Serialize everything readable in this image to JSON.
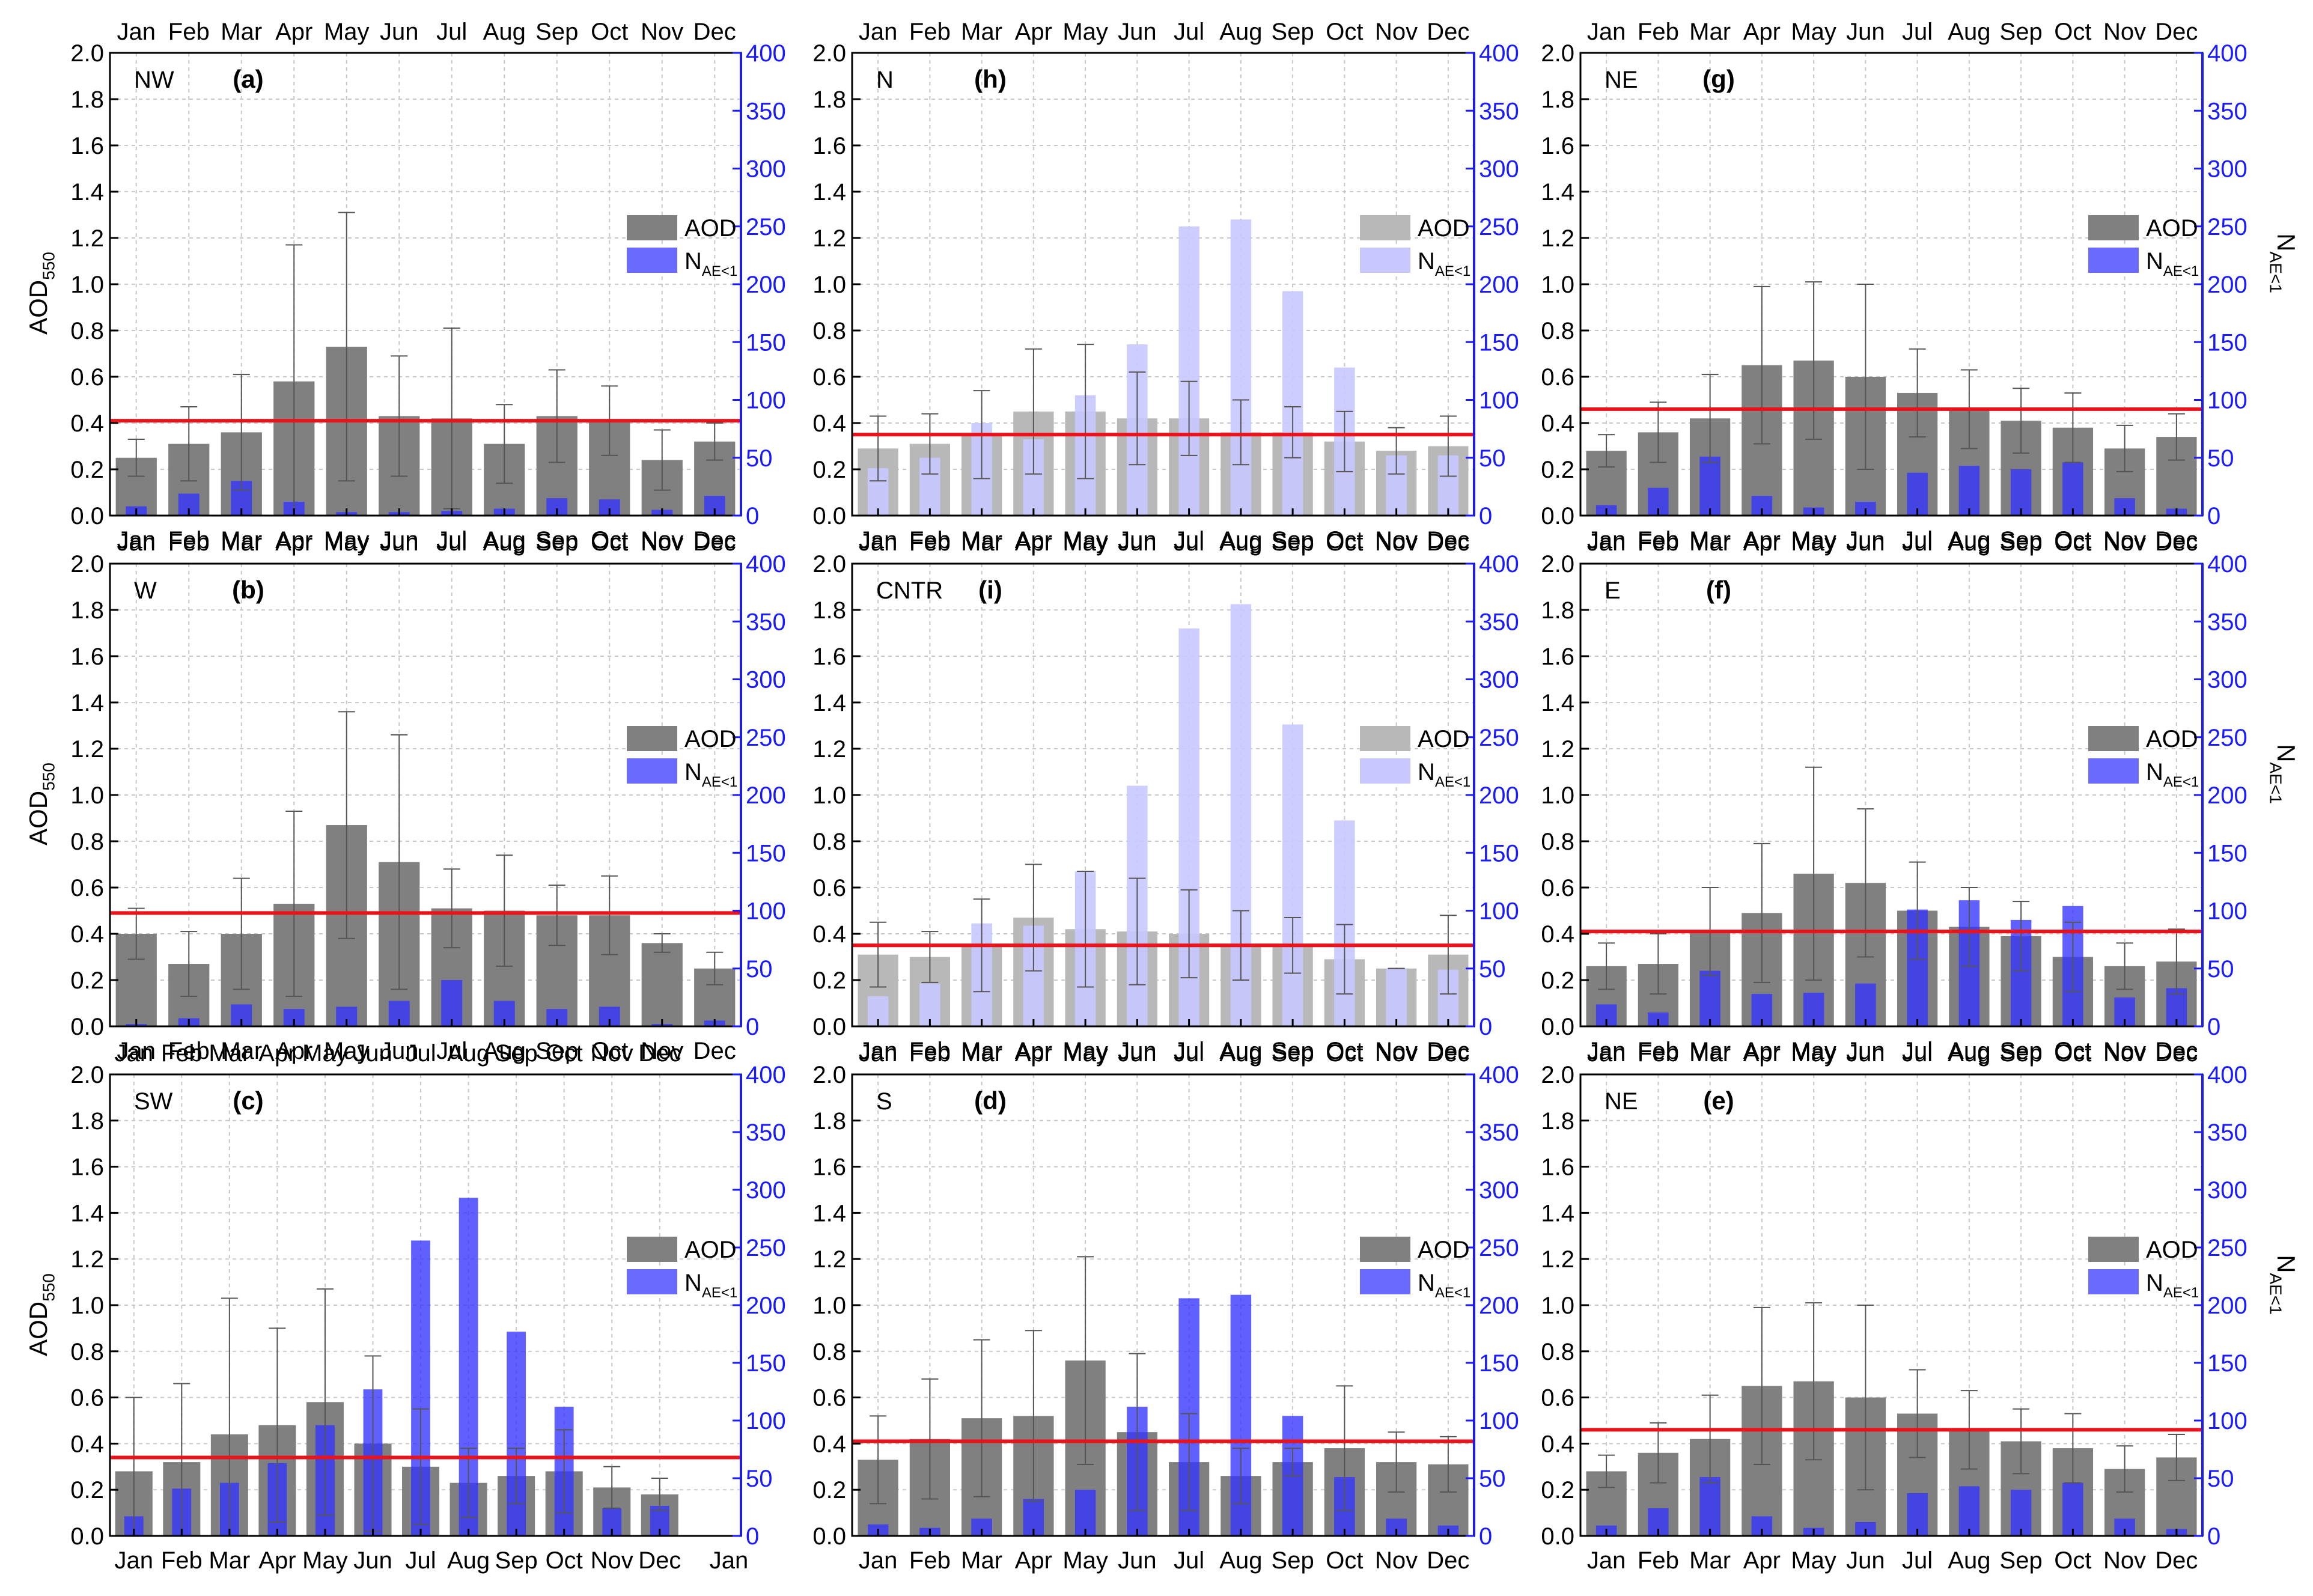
{
  "figure": {
    "months": [
      "Jan",
      "Feb",
      "Mar",
      "Apr",
      "May",
      "Jun",
      "Jul",
      "Aug",
      "Sep",
      "Oct",
      "Nov",
      "Dec"
    ],
    "left_axis_label_main": "AOD",
    "left_axis_label_sub": "550",
    "right_axis_label_main": "N",
    "right_axis_label_sub": "AE<1",
    "legend_aod": "AOD",
    "legend_n_main": "N",
    "legend_n_sub": "AE<1",
    "colors": {
      "aod_bar": "#808080",
      "aod_bar_faded": "#b8b8b8",
      "n_bar": "#3333ff",
      "n_bar_light": "#6a6aff",
      "n_bar_faded": "#c8c8ff",
      "mean_line": "#e8141c",
      "right_axis": "#1a1aff"
    }
  },
  "chart_data": [
    {
      "type": "bar",
      "region": "NW",
      "panel_label": "(a)",
      "categories": [
        "Jan",
        "Feb",
        "Mar",
        "Apr",
        "May",
        "Jun",
        "Jul",
        "Aug",
        "Sep",
        "Oct",
        "Nov",
        "Dec"
      ],
      "extra_tick": "",
      "series": [
        {
          "name": "AOD",
          "axis": "left",
          "values": [
            0.25,
            0.31,
            0.36,
            0.58,
            0.73,
            0.43,
            0.42,
            0.31,
            0.43,
            0.41,
            0.24,
            0.32
          ],
          "error_upper": [
            0.33,
            0.47,
            0.61,
            1.17,
            1.31,
            0.69,
            0.81,
            0.48,
            0.63,
            0.56,
            0.37,
            0.4
          ]
        },
        {
          "name": "N_AE<1",
          "axis": "right",
          "values": [
            8,
            19,
            30,
            12,
            3,
            3,
            4,
            6,
            15,
            14,
            5,
            17
          ]
        }
      ],
      "mean_line": 0.41,
      "ylim_left": [
        0,
        2.0
      ],
      "ylim_right": [
        0,
        400
      ]
    },
    {
      "type": "bar",
      "region": "N",
      "panel_label": "(h)",
      "faded": true,
      "categories": [
        "Jan",
        "Feb",
        "Mar",
        "Apr",
        "May",
        "Jun",
        "Jul",
        "Aug",
        "Sep",
        "Oct",
        "Nov",
        "Dec"
      ],
      "extra_tick": "",
      "series": [
        {
          "name": "AOD",
          "axis": "left",
          "values": [
            0.29,
            0.31,
            0.35,
            0.45,
            0.45,
            0.42,
            0.42,
            0.36,
            0.36,
            0.32,
            0.28,
            0.3
          ],
          "error_upper": [
            0.43,
            0.44,
            0.54,
            0.72,
            0.74,
            0.62,
            0.58,
            0.5,
            0.47,
            0.45,
            0.38,
            0.43
          ]
        },
        {
          "name": "N_AE<1",
          "axis": "right",
          "values": [
            41,
            50,
            80,
            66,
            104,
            148,
            250,
            256,
            194,
            128,
            52,
            52
          ]
        }
      ],
      "mean_line": 0.35,
      "ylim_left": [
        0,
        2.0
      ],
      "ylim_right": [
        0,
        400
      ]
    },
    {
      "type": "bar",
      "region": "NE",
      "panel_label": "(g)",
      "categories": [
        "Jan",
        "Feb",
        "Mar",
        "Apr",
        "May",
        "Jun",
        "Jul",
        "Aug",
        "Sep",
        "Oct",
        "Nov",
        "Dec"
      ],
      "extra_tick": "",
      "series": [
        {
          "name": "AOD",
          "axis": "left",
          "values": [
            0.28,
            0.36,
            0.42,
            0.65,
            0.67,
            0.6,
            0.53,
            0.46,
            0.41,
            0.38,
            0.29,
            0.34
          ],
          "error_upper": [
            0.35,
            0.49,
            0.61,
            0.99,
            1.01,
            1.0,
            0.72,
            0.63,
            0.55,
            0.53,
            0.39,
            0.44
          ]
        },
        {
          "name": "N_AE<1",
          "axis": "right",
          "values": [
            9,
            24,
            51,
            17,
            7,
            12,
            37,
            43,
            40,
            46,
            15,
            6
          ]
        }
      ],
      "mean_line": 0.46,
      "ylim_left": [
        0,
        2.0
      ],
      "ylim_right": [
        0,
        400
      ]
    },
    {
      "type": "bar",
      "region": "W",
      "panel_label": "(b)",
      "categories": [
        "Jan",
        "Feb",
        "Mar",
        "Apr",
        "May",
        "Jun",
        "Jul",
        "Aug",
        "Sep",
        "Oct",
        "Nov",
        "Dec"
      ],
      "extra_tick": "",
      "series": [
        {
          "name": "AOD",
          "axis": "left",
          "values": [
            0.4,
            0.27,
            0.4,
            0.53,
            0.87,
            0.71,
            0.51,
            0.5,
            0.48,
            0.48,
            0.36,
            0.25
          ],
          "error_upper": [
            0.51,
            0.41,
            0.64,
            0.93,
            1.36,
            1.26,
            0.68,
            0.74,
            0.61,
            0.65,
            0.4,
            0.32
          ]
        },
        {
          "name": "N_AE<1",
          "axis": "right",
          "values": [
            2,
            7,
            19,
            15,
            17,
            22,
            40,
            22,
            15,
            17,
            2,
            5
          ]
        }
      ],
      "mean_line": 0.49,
      "ylim_left": [
        0,
        2.0
      ],
      "ylim_right": [
        0,
        400
      ]
    },
    {
      "type": "bar",
      "region": "CNTR",
      "panel_label": "(i)",
      "faded": true,
      "categories": [
        "Jan",
        "Feb",
        "Mar",
        "Apr",
        "May",
        "Jun",
        "Jul",
        "Aug",
        "Sep",
        "Oct",
        "Nov",
        "Dec"
      ],
      "extra_tick": "",
      "series": [
        {
          "name": "AOD",
          "axis": "left",
          "values": [
            0.31,
            0.3,
            0.35,
            0.47,
            0.42,
            0.41,
            0.4,
            0.35,
            0.35,
            0.29,
            0.25,
            0.31
          ],
          "error_upper": [
            0.45,
            0.41,
            0.55,
            0.7,
            0.67,
            0.64,
            0.59,
            0.5,
            0.47,
            0.44,
            0.25,
            0.48
          ]
        },
        {
          "name": "N_AE<1",
          "axis": "right",
          "values": [
            26,
            37,
            89,
            87,
            134,
            208,
            344,
            365,
            261,
            178,
            50,
            49
          ]
        }
      ],
      "mean_line": 0.35,
      "ylim_left": [
        0,
        2.0
      ],
      "ylim_right": [
        0,
        400
      ]
    },
    {
      "type": "bar",
      "region": "E",
      "panel_label": "(f)",
      "categories": [
        "Jan",
        "Feb",
        "Mar",
        "Apr",
        "May",
        "Jun",
        "Jul",
        "Aug",
        "Sep",
        "Oct",
        "Nov",
        "Dec"
      ],
      "extra_tick": "",
      "series": [
        {
          "name": "AOD",
          "axis": "left",
          "values": [
            0.26,
            0.27,
            0.41,
            0.49,
            0.66,
            0.62,
            0.5,
            0.43,
            0.39,
            0.3,
            0.26,
            0.28
          ],
          "error_upper": [
            0.36,
            0.4,
            0.6,
            0.79,
            1.12,
            0.94,
            0.71,
            0.6,
            0.54,
            0.45,
            0.36,
            0.42
          ]
        },
        {
          "name": "N_AE<1",
          "axis": "right",
          "values": [
            19,
            12,
            48,
            28,
            29,
            37,
            101,
            109,
            92,
            104,
            25,
            33
          ]
        }
      ],
      "mean_line": 0.41,
      "ylim_left": [
        0,
        2.0
      ],
      "ylim_right": [
        0,
        400
      ]
    },
    {
      "type": "bar",
      "region": "SW",
      "panel_label": "(c)",
      "categories": [
        "Jan",
        "Feb",
        "Mar",
        "Apr",
        "May",
        "Jun",
        "Jul",
        "Aug",
        "Sep",
        "Oct",
        "Nov",
        "Dec"
      ],
      "extra_tick": "Jan",
      "series": [
        {
          "name": "AOD",
          "axis": "left",
          "values": [
            0.28,
            0.32,
            0.44,
            0.48,
            0.58,
            0.4,
            0.3,
            0.23,
            0.26,
            0.28,
            0.21,
            0.18
          ],
          "error_upper": [
            0.6,
            0.66,
            1.03,
            0.9,
            1.07,
            0.78,
            0.55,
            0.38,
            0.38,
            0.46,
            0.3,
            0.25
          ]
        },
        {
          "name": "N_AE<1",
          "axis": "right",
          "values": [
            17,
            41,
            46,
            63,
            96,
            127,
            256,
            293,
            177,
            112,
            24,
            26
          ]
        }
      ],
      "mean_line": 0.34,
      "ylim_left": [
        0,
        2.0
      ],
      "ylim_right": [
        0,
        400
      ]
    },
    {
      "type": "bar",
      "region": "S",
      "panel_label": "(d)",
      "categories": [
        "Jan",
        "Feb",
        "Mar",
        "Apr",
        "May",
        "Jun",
        "Jul",
        "Aug",
        "Sep",
        "Oct",
        "Nov",
        "Dec"
      ],
      "extra_tick": "",
      "series": [
        {
          "name": "AOD",
          "axis": "left",
          "values": [
            0.33,
            0.42,
            0.51,
            0.52,
            0.76,
            0.45,
            0.32,
            0.26,
            0.32,
            0.38,
            0.32,
            0.31
          ],
          "error_upper": [
            0.52,
            0.68,
            0.85,
            0.89,
            1.21,
            0.79,
            0.53,
            0.38,
            0.38,
            0.65,
            0.45,
            0.43
          ]
        },
        {
          "name": "N_AE<1",
          "axis": "right",
          "values": [
            10,
            7,
            15,
            32,
            40,
            112,
            206,
            209,
            104,
            51,
            15,
            9
          ]
        }
      ],
      "mean_line": 0.41,
      "ylim_left": [
        0,
        2.0
      ],
      "ylim_right": [
        0,
        400
      ]
    },
    {
      "type": "bar",
      "region": "NE",
      "panel_label": "(e)",
      "categories": [
        "Jan",
        "Feb",
        "Mar",
        "Apr",
        "May",
        "Jun",
        "Jul",
        "Aug",
        "Sep",
        "Oct",
        "Nov",
        "Dec"
      ],
      "extra_tick": "",
      "series": [
        {
          "name": "AOD",
          "axis": "left",
          "values": [
            0.28,
            0.36,
            0.42,
            0.65,
            0.67,
            0.6,
            0.53,
            0.46,
            0.41,
            0.38,
            0.29,
            0.34
          ],
          "error_upper": [
            0.35,
            0.49,
            0.61,
            0.99,
            1.01,
            1.0,
            0.72,
            0.63,
            0.55,
            0.53,
            0.39,
            0.44
          ]
        },
        {
          "name": "N_AE<1",
          "axis": "right",
          "values": [
            9,
            24,
            51,
            17,
            7,
            12,
            37,
            43,
            40,
            46,
            15,
            6
          ]
        }
      ],
      "mean_line": 0.46,
      "ylim_left": [
        0,
        2.0
      ],
      "ylim_right": [
        0,
        400
      ]
    }
  ]
}
